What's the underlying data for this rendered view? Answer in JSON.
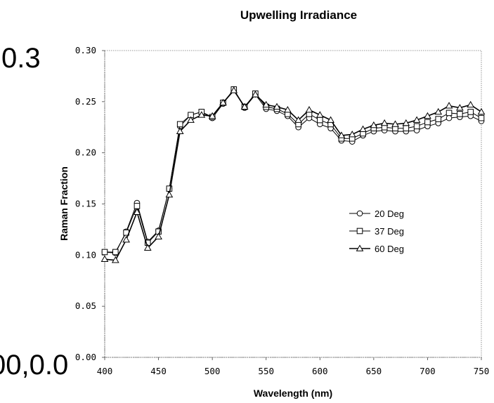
{
  "overlay": {
    "top_left_label": "0.3",
    "bottom_left_label": "00,0.0"
  },
  "chart_data": {
    "type": "line",
    "title": "Upwelling Irradiance",
    "xlabel": "Wavelength (nm)",
    "ylabel": "Raman Fraction",
    "xlim": [
      400,
      750
    ],
    "ylim": [
      0.0,
      0.3
    ],
    "x_ticks": [
      "400",
      "450",
      "500",
      "550",
      "600",
      "650",
      "700",
      "750"
    ],
    "y_ticks": [
      "0.00",
      "0.05",
      "0.10",
      "0.15",
      "0.20",
      "0.25",
      "0.30"
    ],
    "grid": false,
    "legend_position": "right",
    "x": [
      400,
      410,
      420,
      430,
      440,
      450,
      460,
      470,
      480,
      490,
      500,
      510,
      520,
      530,
      540,
      550,
      560,
      570,
      580,
      590,
      600,
      610,
      620,
      630,
      640,
      650,
      660,
      670,
      680,
      690,
      700,
      710,
      720,
      730,
      740,
      750
    ],
    "series": [
      {
        "name": "20 Deg",
        "marker": "circle",
        "values": [
          0.103,
          0.102,
          0.123,
          0.151,
          0.113,
          0.124,
          0.165,
          0.226,
          0.237,
          0.24,
          0.234,
          0.248,
          0.262,
          0.244,
          0.257,
          0.243,
          0.241,
          0.236,
          0.225,
          0.234,
          0.228,
          0.224,
          0.212,
          0.211,
          0.217,
          0.221,
          0.222,
          0.221,
          0.221,
          0.222,
          0.226,
          0.229,
          0.234,
          0.235,
          0.236,
          0.231
        ]
      },
      {
        "name": "37 Deg",
        "marker": "square",
        "values": [
          0.103,
          0.103,
          0.122,
          0.148,
          0.112,
          0.123,
          0.165,
          0.228,
          0.237,
          0.24,
          0.235,
          0.249,
          0.262,
          0.245,
          0.258,
          0.245,
          0.243,
          0.238,
          0.228,
          0.238,
          0.232,
          0.228,
          0.214,
          0.214,
          0.219,
          0.224,
          0.225,
          0.224,
          0.224,
          0.226,
          0.23,
          0.233,
          0.239,
          0.238,
          0.24,
          0.234
        ]
      },
      {
        "name": "60 Deg",
        "marker": "triangle",
        "values": [
          0.096,
          0.095,
          0.115,
          0.142,
          0.107,
          0.118,
          0.159,
          0.221,
          0.232,
          0.237,
          0.236,
          0.249,
          0.261,
          0.245,
          0.257,
          0.247,
          0.245,
          0.242,
          0.232,
          0.242,
          0.237,
          0.232,
          0.217,
          0.218,
          0.223,
          0.227,
          0.229,
          0.228,
          0.229,
          0.232,
          0.236,
          0.24,
          0.246,
          0.244,
          0.247,
          0.24
        ]
      }
    ]
  }
}
